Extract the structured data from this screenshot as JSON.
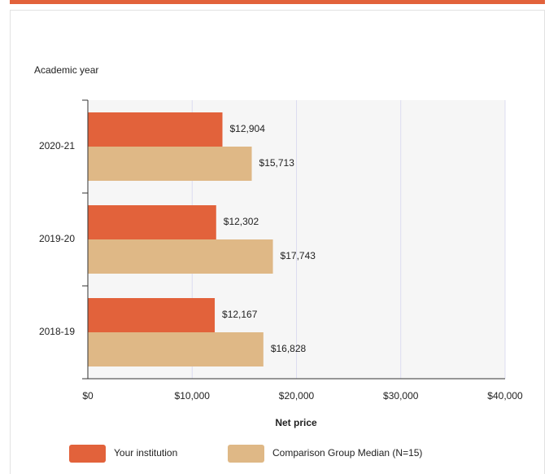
{
  "chart_data": {
    "type": "bar",
    "orientation": "horizontal",
    "y_axis_title": "Academic year",
    "x_axis_title": "Net price",
    "categories": [
      "2020-21",
      "2019-20",
      "2018-19"
    ],
    "series": [
      {
        "name": "Your institution",
        "color": "#e2623b",
        "values": [
          12904,
          12302,
          12167
        ],
        "value_labels": [
          "$12,904",
          "$12,302",
          "$12,167"
        ]
      },
      {
        "name": "Comparison Group Median (N=15)",
        "color": "#dfb886",
        "values": [
          15713,
          17743,
          16828
        ],
        "value_labels": [
          "$15,713",
          "$17,743",
          "$16,828"
        ]
      }
    ],
    "xlim": [
      0,
      40000
    ],
    "xticks": [
      {
        "value": 0,
        "label": "$0"
      },
      {
        "value": 10000,
        "label": "$10,000"
      },
      {
        "value": 20000,
        "label": "$20,000"
      },
      {
        "value": 30000,
        "label": "$30,000"
      },
      {
        "value": 40000,
        "label": "$40,000"
      }
    ],
    "grid": true,
    "legend": "bottom"
  }
}
